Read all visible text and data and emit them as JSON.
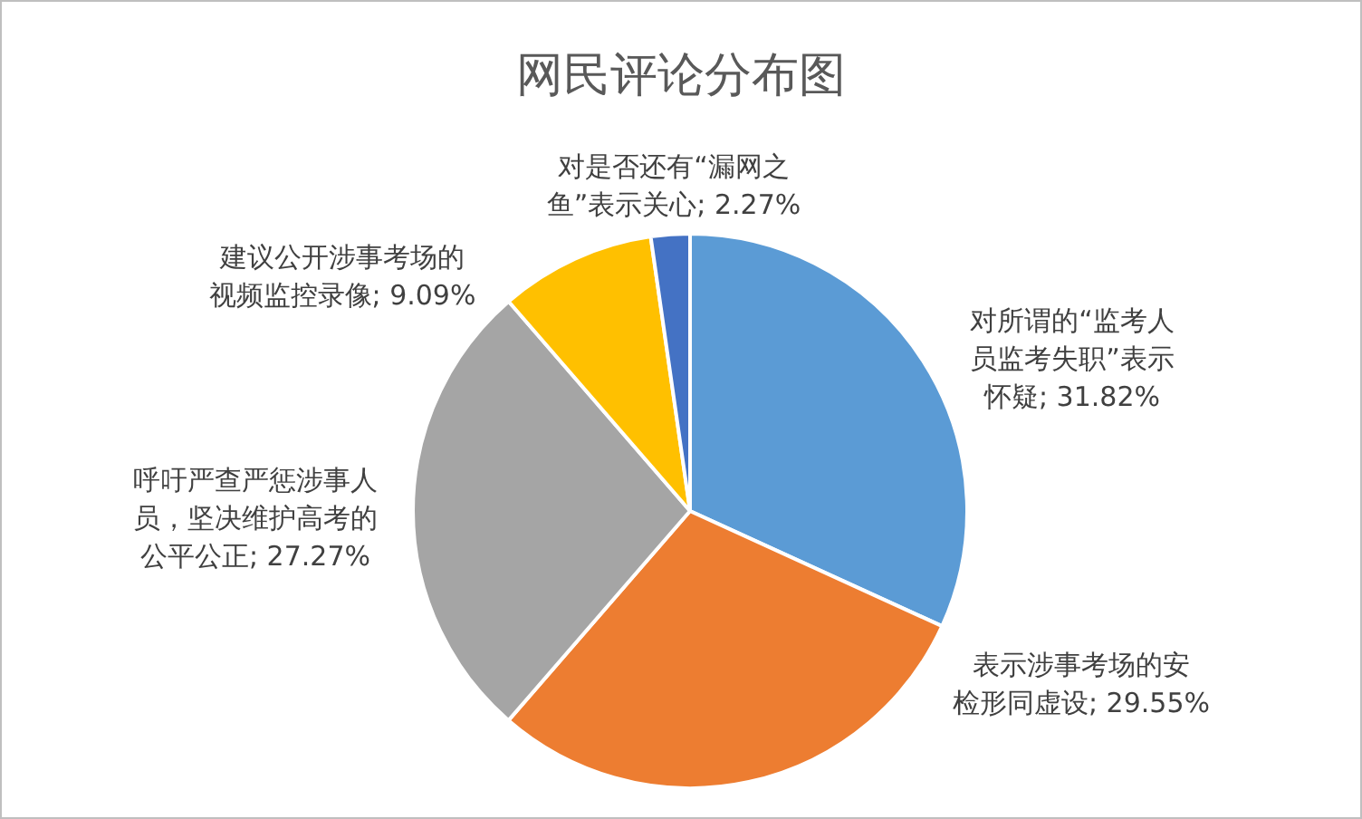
{
  "chart_data": {
    "type": "pie",
    "title": "网民评论分布图",
    "categories": [
      "对所谓的“监考人员监考失职”表示怀疑",
      "表示涉事考场的安检形同虚设",
      "呼吁严查严惩涉事人员，坚决维护高考的公平公正",
      "建议公开涉事考场的视频监控录像",
      "对是否还有“漏网之鱼”表示关心"
    ],
    "values": [
      31.82,
      29.55,
      27.27,
      9.09,
      2.27
    ],
    "value_labels": [
      "31.82%",
      "29.55%",
      "27.27%",
      "9.09%",
      "2.27%"
    ],
    "colors": [
      "#5b9bd5",
      "#ed7d31",
      "#a5a5a5",
      "#ffc000",
      "#4472c4"
    ],
    "legend": false
  }
}
